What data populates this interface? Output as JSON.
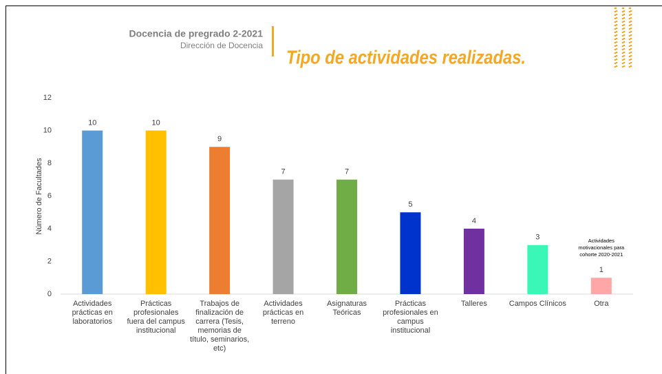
{
  "header": {
    "title": "Docencia de pregrado 2-2021",
    "subtitle": "Dirección de Docencia"
  },
  "chart_data": {
    "type": "bar",
    "title": "Tipo de actividades realizadas.",
    "y_label": "Número de Facultades",
    "categories": [
      "Actividades prácticas en laboratorios",
      "Prácticas profesionales fuera del campus institucional",
      "Trabajos de finalización de carrera (Tesis, memorias de título, seminarios, etc)",
      "Actividades prácticas en terreno",
      "Asignaturas Teóricas",
      "Prácticas profesionales en campus institucional",
      "Talleres",
      "Campos Clínicos",
      "Otra"
    ],
    "values": [
      10,
      10,
      9,
      7,
      7,
      5,
      4,
      3,
      1
    ],
    "colors": [
      "#5b9bd5",
      "#ffc000",
      "#ed7d31",
      "#a5a5a5",
      "#70ad47",
      "#0033cc",
      "#7030a0",
      "#3af7b8",
      "#ffa7a7"
    ],
    "ylim": [
      0,
      12
    ],
    "yticks": [
      0,
      2,
      4,
      6,
      8,
      10,
      12
    ],
    "grid": false,
    "annotation": "Actividades motivacionales para cohorte 2020-2021"
  }
}
